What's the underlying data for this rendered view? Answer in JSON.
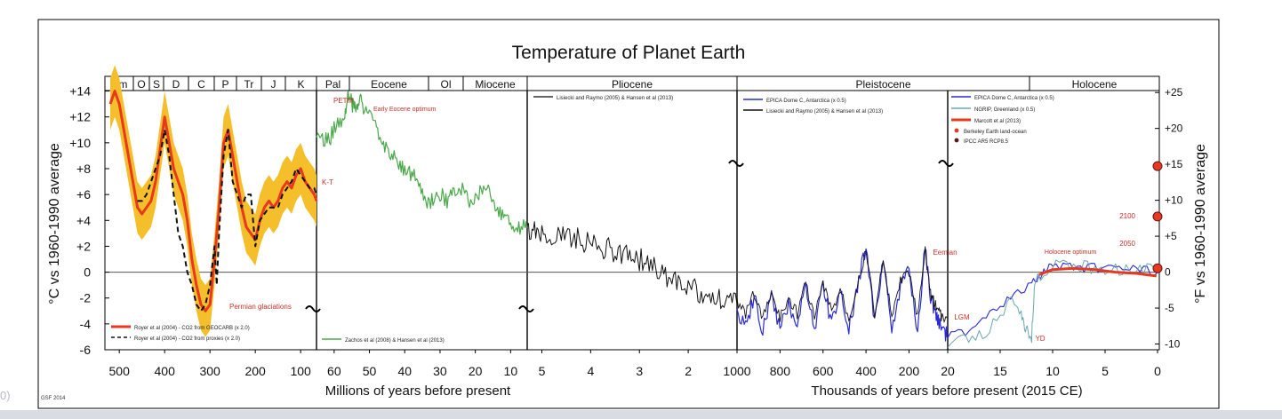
{
  "corner_text": "0)",
  "chart_data": {
    "type": "line",
    "title": "Temperature of Planet Earth",
    "credit": "GSF 2014",
    "ylabel_left": "°C vs 1960-1990 average",
    "ylabel_right": "°F vs 1960-1990 average",
    "ylim_c": [
      -6,
      15
    ],
    "left_ticks": [
      "+14",
      "+12",
      "+10",
      "+8",
      "+6",
      "+4",
      "+2",
      "0",
      "-2",
      "-4",
      "-6"
    ],
    "left_tick_values": [
      14,
      12,
      10,
      8,
      6,
      4,
      2,
      0,
      -2,
      -4,
      -6
    ],
    "right_ticks": [
      "+25",
      "+20",
      "+15",
      "+10",
      "+5",
      "0",
      "-5",
      "-10"
    ],
    "right_tick_values_f": [
      25,
      20,
      15,
      10,
      5,
      0,
      -5,
      -10
    ],
    "xlabel_left": "Millions of years before present",
    "xlabel_right": "Thousands of years before present (2015 CE)",
    "panels": [
      {
        "scale": "Ma",
        "from": 520,
        "to": 65,
        "ticks": [
          "500",
          "400",
          "300",
          "200",
          "100"
        ],
        "tick_values": [
          500,
          400,
          300,
          200,
          100
        ]
      },
      {
        "scale": "Ma",
        "from": 65,
        "to": 5.3,
        "ticks": [
          "60",
          "50",
          "40",
          "30",
          "20",
          "10"
        ],
        "tick_values": [
          60,
          50,
          40,
          30,
          20,
          10
        ]
      },
      {
        "scale": "Ma",
        "from": 5.3,
        "to": 1,
        "ticks": [
          "5",
          "4",
          "3",
          "2",
          "1000"
        ],
        "tick_values": [
          5,
          4,
          3,
          2,
          1
        ]
      },
      {
        "scale": "ka",
        "from": 1000,
        "to": 20,
        "ticks": [
          "800",
          "600",
          "400",
          "200",
          "20"
        ],
        "tick_values": [
          800,
          600,
          400,
          200,
          20
        ]
      },
      {
        "scale": "ka",
        "from": 20,
        "to": 0,
        "ticks": [
          "15",
          "10",
          "5",
          "0"
        ],
        "tick_values": [
          15,
          10,
          5,
          0
        ]
      }
    ],
    "periods": [
      "Cm",
      "O",
      "S",
      "D",
      "C",
      "P",
      "Tr",
      "J",
      "K",
      "Pal",
      "Eocene",
      "Ol",
      "Miocene",
      "Pliocene",
      "Pleistocene",
      "Holocene"
    ],
    "annotations": [
      {
        "text": "PETM",
        "color": "#c8312a"
      },
      {
        "text": "Early Eocene optimum",
        "color": "#c8312a"
      },
      {
        "text": "K-T",
        "color": "#c8312a"
      },
      {
        "text": "Permian glaciations",
        "color": "#c8312a"
      },
      {
        "text": "Eemian",
        "color": "#c8312a"
      },
      {
        "text": "LGM",
        "color": "#c8312a"
      },
      {
        "text": "YD",
        "color": "#c8312a"
      },
      {
        "text": "Holocene optimum",
        "color": "#c8312a"
      },
      {
        "text": "2100",
        "color": "#c8312a"
      },
      {
        "text": "2050",
        "color": "#c8312a"
      }
    ],
    "legends": [
      {
        "text": "Royer et al (2004) - CO2 from GEOCARB (x 2.0)",
        "style": "solid",
        "color": "#e8391f"
      },
      {
        "text": "Royer et al (2004) - CO2 from proxies (x 2.0)",
        "style": "dashed",
        "color": "#111111"
      },
      {
        "text": "Zachos et al (2008) & Hansen et al (2013)",
        "style": "solid",
        "color": "#4aa84a"
      },
      {
        "text": "Lisiecki and Raymo (2005) & Hansen et al (2013)",
        "style": "solid",
        "color": "#333333"
      },
      {
        "text": "EPICA Dome C, Antarctica (x 0.5)",
        "style": "solid",
        "color": "#2a2ad8"
      },
      {
        "text": "Lisiecki and Raymo (2005) & Hansen et al (2013)",
        "style": "solid",
        "color": "#111111"
      },
      {
        "text": "EPICA Dome C, Antarctica (x 0.5)",
        "style": "solid",
        "color": "#2a2ad8"
      },
      {
        "text": "NGRIP, Greenland (x 0.5)",
        "style": "solid",
        "color": "#6aa7b0"
      },
      {
        "text": "Marcott et al (2013)",
        "style": "solid",
        "color": "#e8391f"
      },
      {
        "text": "Berkeley Earth land-ocean",
        "style": "dot",
        "color": "#e8391f"
      },
      {
        "text": "IPCC AR5 RCP8.5",
        "style": "dot",
        "color": "#5b1a1a"
      }
    ],
    "colors": {
      "range_band": "#f5bf2b",
      "geocarb": "#e8391f",
      "proxies": "#111111",
      "cenozoic": "#4aa84a",
      "lr05": "#111111",
      "epica": "#2a2ad8",
      "ngrip": "#6aa7b0",
      "marcott": "#e8391f",
      "annotation": "#c8312a"
    },
    "series": [
      {
        "name": "Royer et al (2004) - CO2 from GEOCARB (x 2.0)",
        "panel": 0,
        "x": [
          520,
          510,
          500,
          490,
          480,
          470,
          460,
          450,
          440,
          430,
          420,
          410,
          400,
          390,
          380,
          370,
          360,
          350,
          340,
          330,
          320,
          310,
          300,
          290,
          280,
          270,
          260,
          250,
          240,
          230,
          220,
          210,
          200,
          190,
          180,
          170,
          160,
          150,
          140,
          130,
          120,
          110,
          100,
          90,
          80,
          70,
          65
        ],
        "y": [
          13,
          14,
          13,
          11,
          9,
          7,
          5,
          4.5,
          5,
          5.5,
          7,
          9.5,
          12,
          10,
          8,
          7,
          6,
          4,
          1,
          -1,
          -2.5,
          -3,
          -2.5,
          1,
          5,
          10,
          11,
          9,
          7,
          5,
          3.5,
          3,
          2.5,
          4,
          5,
          5.5,
          5,
          5.5,
          6.5,
          7,
          6.5,
          7.5,
          8,
          7,
          6.5,
          6,
          5.5
        ]
      },
      {
        "name": "Royer et al (2004) - CO2 from proxies (x 2.0)",
        "panel": 0,
        "x": [
          460,
          450,
          440,
          430,
          420,
          410,
          400,
          390,
          380,
          370,
          360,
          350,
          340,
          330,
          320,
          310,
          300,
          290,
          285,
          280,
          270,
          260,
          250,
          240,
          230,
          220,
          210,
          200,
          190,
          180,
          170,
          160,
          150,
          140,
          130,
          120,
          110,
          100,
          90,
          80,
          70,
          65
        ],
        "y": [
          5.5,
          5.5,
          6,
          7,
          8,
          9,
          11,
          9,
          6,
          3,
          2,
          0,
          -1,
          -2.5,
          -3,
          -2.5,
          -1,
          2,
          -1,
          3,
          9,
          11,
          7,
          6,
          5,
          6,
          6,
          2,
          4,
          4.5,
          5,
          5,
          5,
          6,
          6.5,
          7,
          8,
          7.5,
          7,
          6.5,
          6.5,
          6
        ]
      },
      {
        "name": "Zachos et al (2008) & Hansen et al (2013)",
        "panel": 1,
        "x": [
          65,
          63,
          61,
          59,
          57,
          56,
          55,
          54,
          53,
          52,
          50,
          48,
          46,
          44,
          42,
          40,
          38,
          36,
          34,
          32,
          30,
          28,
          26,
          24,
          22,
          20,
          18,
          16,
          14,
          12,
          10,
          8,
          6,
          5.3
        ],
        "y": [
          11,
          10,
          10.5,
          11.5,
          12,
          14,
          13,
          12.5,
          13.5,
          13,
          12,
          11,
          10,
          9,
          8.5,
          8,
          7.5,
          7,
          5,
          5.5,
          6,
          5.5,
          6,
          6.5,
          5.5,
          6,
          6.5,
          6,
          5,
          4.5,
          4,
          3.5,
          3.5,
          3.5
        ]
      },
      {
        "name": "Lisiecki and Raymo (2005) & Hansen et al (2013)",
        "panel": 2,
        "x": [
          5.3,
          5.0,
          4.6,
          4.2,
          3.8,
          3.4,
          3.0,
          2.6,
          2.2,
          1.8,
          1.4,
          1.0
        ],
        "y": [
          3,
          3,
          3,
          2.5,
          2,
          1.5,
          1,
          0,
          -0.8,
          -1.5,
          -2,
          -2.5
        ]
      },
      {
        "name": "EPICA Dome C, Antarctica (x 0.5)",
        "panel": 3,
        "x": [
          1000,
          960,
          920,
          880,
          840,
          800,
          760,
          720,
          680,
          640,
          600,
          560,
          520,
          480,
          440,
          400,
          360,
          320,
          280,
          240,
          200,
          160,
          125,
          100,
          80,
          60,
          40,
          20
        ],
        "y": [
          -3,
          -4,
          -2,
          -4.5,
          -2,
          -4.5,
          -2.5,
          -4,
          -1,
          -4.5,
          -1,
          -4,
          -1.5,
          -4.5,
          -1,
          2,
          -4,
          1,
          -4.5,
          -1,
          0,
          -4.5,
          2,
          -2,
          -3,
          -4,
          -4.5,
          -5
        ]
      },
      {
        "name": "EPICA Dome C, Antarctica (x 0.5)",
        "panel": 4,
        "x": [
          20,
          18,
          16,
          14,
          12,
          11,
          10,
          8,
          6,
          4,
          2,
          0
        ],
        "y": [
          -5,
          -4.5,
          -3,
          -2,
          -1,
          0,
          0.5,
          0.4,
          0.3,
          0.3,
          0.2,
          0
        ]
      },
      {
        "name": "NGRIP, Greenland (x 0.5)",
        "panel": 4,
        "x": [
          20,
          18,
          16,
          14,
          13,
          12.5,
          12,
          11.7,
          10,
          8,
          6,
          4,
          2,
          0
        ],
        "y": [
          -5.5,
          -5,
          -4.5,
          -2,
          -3,
          -4.5,
          -5,
          -0.5,
          0.5,
          0.5,
          0.3,
          0.2,
          0.3,
          0.2
        ]
      },
      {
        "name": "Marcott et al (2013)",
        "panel": 4,
        "x": [
          11.3,
          10,
          8,
          6,
          4,
          2,
          0.1
        ],
        "y": [
          -0.2,
          0.2,
          0.3,
          0.2,
          0.0,
          -0.1,
          -0.3
        ]
      }
    ],
    "markers": [
      {
        "label": "2100",
        "y": 8.2
      },
      {
        "label": "2050",
        "y": 4.3
      },
      {
        "label": "",
        "y": 0.3
      }
    ]
  }
}
